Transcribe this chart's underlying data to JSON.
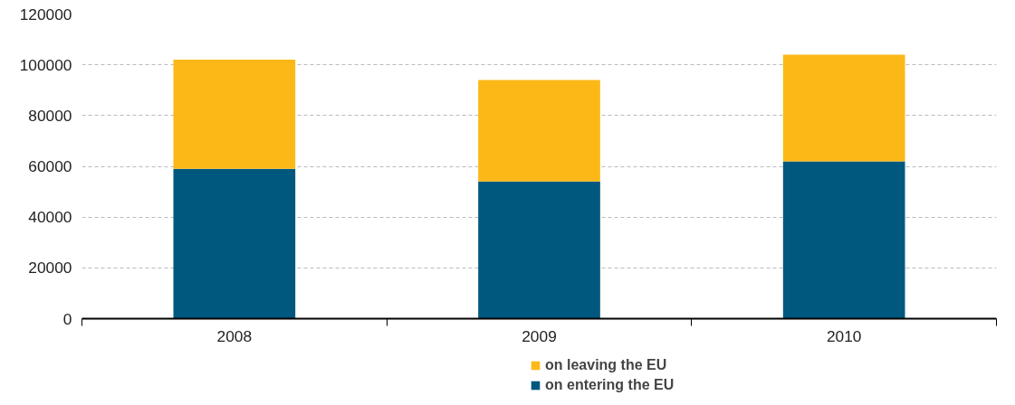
{
  "chart_data": {
    "type": "bar",
    "stacked": true,
    "categories": [
      "2008",
      "2009",
      "2010"
    ],
    "series": [
      {
        "name": "on entering the EU",
        "color": "#00587f",
        "values": [
          59000,
          54000,
          62000
        ]
      },
      {
        "name": "on leaving the EU",
        "color": "#fbb817",
        "values": [
          43000,
          40000,
          42000
        ]
      }
    ],
    "ylim": [
      0,
      120000
    ],
    "yticks": [
      0,
      20000,
      40000,
      60000,
      80000,
      100000,
      120000
    ],
    "grid": "y",
    "legend": "bottom"
  }
}
